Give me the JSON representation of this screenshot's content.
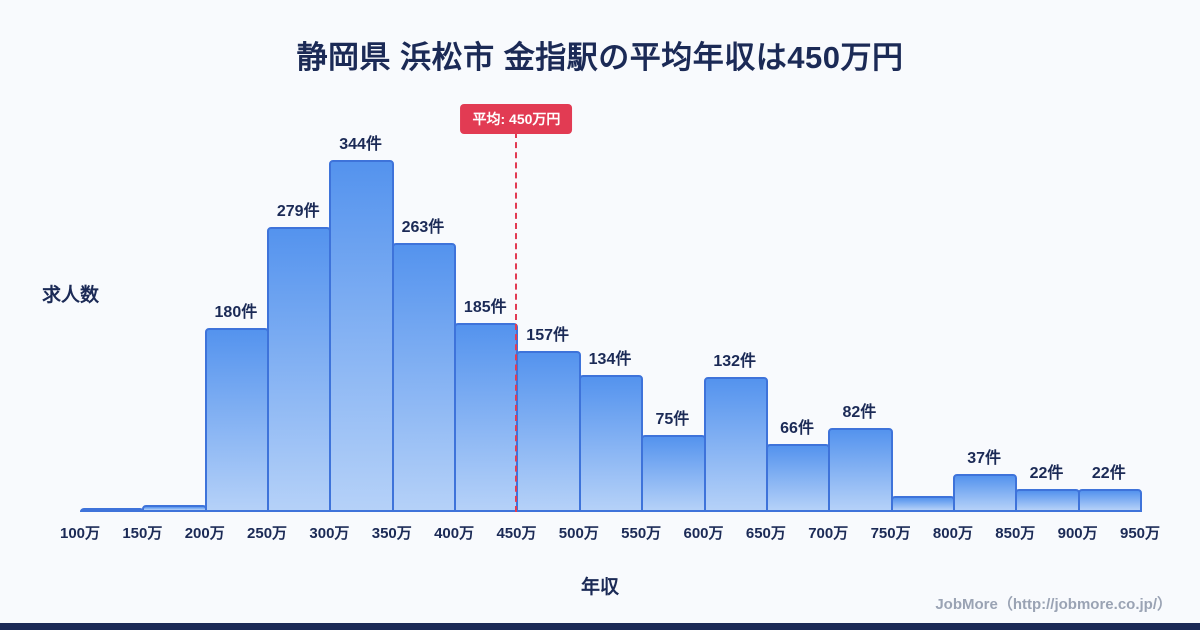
{
  "page": {
    "title": "静岡県 浜松市 金指駅の平均年収は450万円",
    "footer": "JobMore（http://jobmore.co.jp/）"
  },
  "chart_data": {
    "type": "bar",
    "title": "静岡県 浜松市 金指駅の平均年収は450万円",
    "xlabel": "年収",
    "ylabel": "求人数",
    "ylim": [
      0,
      360
    ],
    "grid": false,
    "x_ticks": [
      "100万",
      "150万",
      "200万",
      "250万",
      "300万",
      "350万",
      "400万",
      "450万",
      "500万",
      "550万",
      "600万",
      "650万",
      "700万",
      "750万",
      "800万",
      "850万",
      "900万",
      "950万"
    ],
    "bins": [
      {
        "range": "100万-150万",
        "value": 3,
        "label": ""
      },
      {
        "range": "150万-200万",
        "value": 7,
        "label": ""
      },
      {
        "range": "200万-250万",
        "value": 180,
        "label": "180件"
      },
      {
        "range": "250万-300万",
        "value": 279,
        "label": "279件"
      },
      {
        "range": "300万-350万",
        "value": 344,
        "label": "344件"
      },
      {
        "range": "350万-400万",
        "value": 263,
        "label": "263件"
      },
      {
        "range": "400万-450万",
        "value": 185,
        "label": "185件"
      },
      {
        "range": "450万-500万",
        "value": 157,
        "label": "157件"
      },
      {
        "range": "500万-550万",
        "value": 134,
        "label": "134件"
      },
      {
        "range": "550万-600万",
        "value": 75,
        "label": "75件"
      },
      {
        "range": "600万-650万",
        "value": 132,
        "label": "132件"
      },
      {
        "range": "650万-700万",
        "value": 66,
        "label": "66件"
      },
      {
        "range": "700万-750万",
        "value": 82,
        "label": "82件"
      },
      {
        "range": "750万-800万",
        "value": 16,
        "label": ""
      },
      {
        "range": "800万-850万",
        "value": 37,
        "label": "37件"
      },
      {
        "range": "850万-900万",
        "value": 22,
        "label": "22件"
      },
      {
        "range": "900万-950万",
        "value": 22,
        "label": "22件"
      }
    ],
    "average_line": {
      "x_tick": "450万",
      "label": "平均: 450万円",
      "color": "#e23b53"
    },
    "colors": {
      "bar_top": "#5493ee",
      "bar_bottom": "#b5d1f8",
      "bar_border": "#3e73da",
      "accent_navy": "#1b2a56",
      "background": "#f8fafd"
    }
  }
}
